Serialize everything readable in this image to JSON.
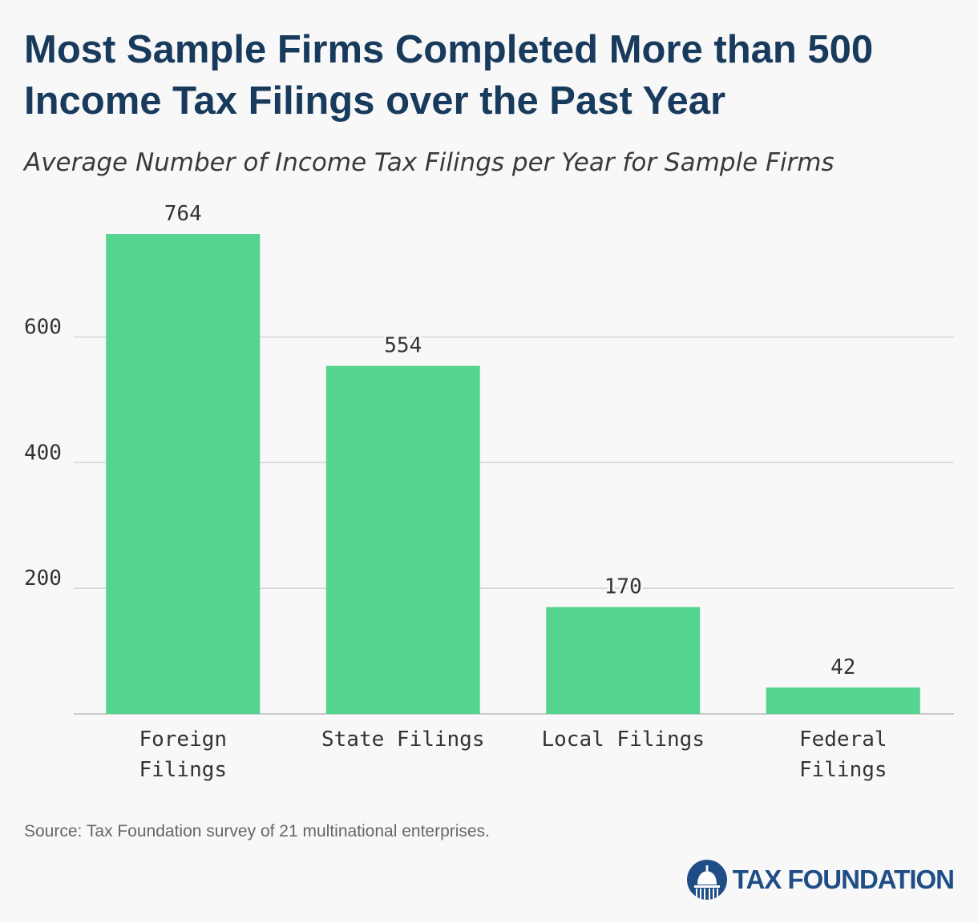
{
  "header": {
    "title": "Most Sample Firms Completed More than 500 Income Tax Filings over the Past Year",
    "subtitle": "Average Number of Income Tax Filings per Year for Sample Firms"
  },
  "chart_data": {
    "type": "bar",
    "categories": [
      [
        "Foreign",
        "Filings"
      ],
      [
        "State Filings"
      ],
      [
        "Local Filings"
      ],
      [
        "Federal",
        "Filings"
      ]
    ],
    "values": [
      764,
      554,
      170,
      42
    ],
    "data_labels": [
      "764",
      "554",
      "170",
      "42"
    ],
    "title": "Average Number of Income Tax Filings per Year for Sample Firms",
    "xlabel": "",
    "ylabel": "",
    "ylim": [
      0,
      764
    ],
    "yticks": [
      200,
      400,
      600
    ],
    "grid": true,
    "legend": "none",
    "bar_color": "#54d48f",
    "grid_color": "#d5d5d5"
  },
  "footer": {
    "source": "Source: Tax Foundation survey of 21 multinational enterprises.",
    "logo_text": "TAX FOUNDATION",
    "logo_icon": "capitol-dome-icon",
    "brand_color": "#1f4e86"
  }
}
